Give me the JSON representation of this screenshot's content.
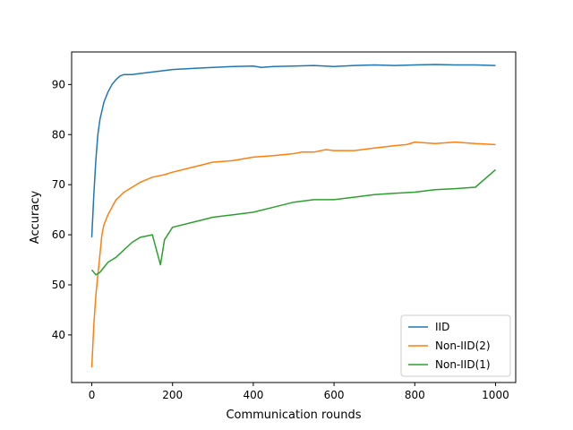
{
  "chart_data": {
    "type": "line",
    "xlabel": "Communication rounds",
    "ylabel": "Accuracy",
    "xlim": [
      -50,
      1050
    ],
    "ylim": [
      30.5,
      96.5
    ],
    "xticks": [
      0,
      200,
      400,
      600,
      800,
      1000
    ],
    "yticks": [
      40,
      50,
      60,
      70,
      80,
      90
    ],
    "grid": false,
    "legend": "lower-right",
    "series": [
      {
        "name": "IID",
        "color": "#1f77b4",
        "x": [
          0,
          5,
          10,
          15,
          20,
          30,
          40,
          50,
          60,
          70,
          80,
          100,
          120,
          150,
          180,
          200,
          250,
          300,
          350,
          400,
          420,
          450,
          500,
          550,
          600,
          650,
          700,
          750,
          800,
          850,
          900,
          950,
          1000
        ],
        "y": [
          59.5,
          68,
          75,
          80,
          83,
          86.5,
          88.5,
          90,
          91,
          91.7,
          92,
          92,
          92.2,
          92.5,
          92.8,
          93,
          93.2,
          93.4,
          93.6,
          93.7,
          93.4,
          93.6,
          93.7,
          93.8,
          93.6,
          93.8,
          93.9,
          93.8,
          93.9,
          94,
          93.9,
          93.9,
          93.8
        ]
      },
      {
        "name": "Non-IID(2)",
        "color": "#ff7f0e",
        "x": [
          0,
          5,
          10,
          15,
          20,
          25,
          30,
          40,
          50,
          60,
          80,
          100,
          120,
          150,
          180,
          200,
          250,
          300,
          350,
          400,
          450,
          500,
          520,
          550,
          580,
          600,
          650,
          700,
          750,
          780,
          800,
          850,
          900,
          950,
          1000
        ],
        "y": [
          33.5,
          42,
          48,
          52,
          56,
          60,
          62,
          64,
          65.5,
          67,
          68.5,
          69.5,
          70.5,
          71.5,
          72,
          72.5,
          73.5,
          74.5,
          74.8,
          75.5,
          75.8,
          76.2,
          76.5,
          76.5,
          77,
          76.8,
          76.8,
          77.3,
          77.8,
          78,
          78.5,
          78.2,
          78.5,
          78.2,
          78
        ]
      },
      {
        "name": "Non-IID(1)",
        "color": "#2ca02c",
        "x": [
          0,
          10,
          20,
          30,
          40,
          50,
          60,
          80,
          100,
          120,
          150,
          170,
          180,
          200,
          250,
          300,
          350,
          400,
          450,
          500,
          550,
          600,
          650,
          700,
          750,
          800,
          850,
          900,
          950,
          1000
        ],
        "y": [
          53,
          52,
          52.5,
          53.5,
          54.5,
          55,
          55.5,
          57,
          58.5,
          59.5,
          60,
          54,
          59,
          61.5,
          62.5,
          63.5,
          64,
          64.5,
          65.5,
          66.5,
          67,
          67,
          67.5,
          68,
          68.3,
          68.5,
          69,
          69.2,
          69.5,
          73
        ]
      }
    ]
  }
}
